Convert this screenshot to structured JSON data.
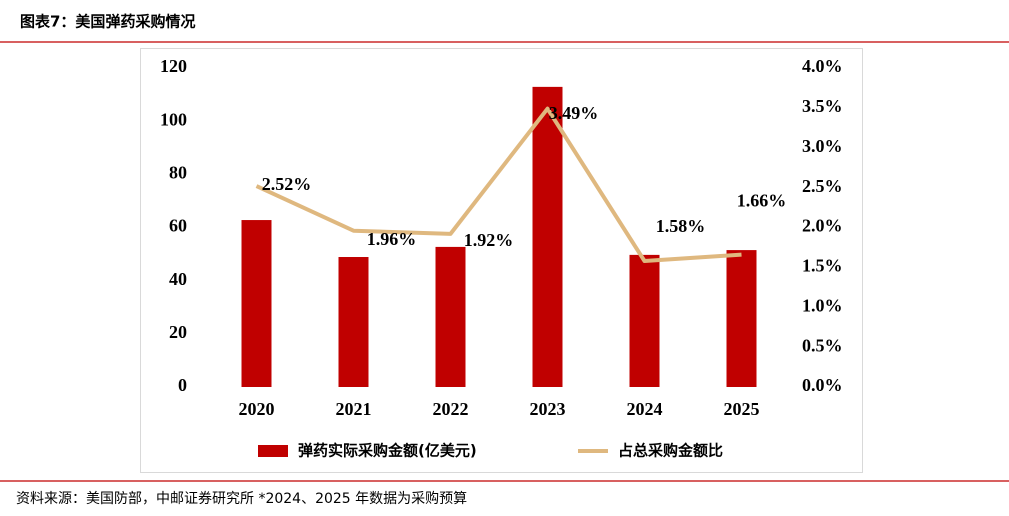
{
  "chart_data": {
    "type": "bar",
    "title": "图表7：美国弹药采购情况",
    "source": "资料来源：美国防部，中邮证券研究所 *2024、2025 年数据为采购预算",
    "categories": [
      "2020",
      "2021",
      "2022",
      "2023",
      "2024",
      "2025"
    ],
    "series": [
      {
        "name": "弹药实际采购金额(亿美元)",
        "type": "bar",
        "color": "#c00000",
        "values": [
          62.8,
          48.9,
          52.7,
          112.9,
          49.7,
          51.5
        ]
      },
      {
        "name": "占总采购金额比",
        "type": "line",
        "axis": "y2",
        "color": "#dfb87f",
        "values": [
          2.52,
          1.96,
          1.92,
          3.49,
          1.58,
          1.66
        ],
        "value_labels": [
          "2.52%",
          "1.96%",
          "1.92%",
          "3.49%",
          "1.58%",
          "1.66%"
        ]
      }
    ],
    "ylim": [
      0,
      120
    ],
    "yticks": [
      0,
      20,
      40,
      60,
      80,
      100,
      120
    ],
    "y2lim": [
      0,
      4
    ],
    "y2ticks": [
      {
        "value": 0,
        "label": "0.0%"
      },
      {
        "value": 0.5,
        "label": "0.5%"
      },
      {
        "value": 1,
        "label": "1.0%"
      },
      {
        "value": 1.5,
        "label": "1.5%"
      },
      {
        "value": 2,
        "label": "2.0%"
      },
      {
        "value": 2.5,
        "label": "2.5%"
      },
      {
        "value": 3,
        "label": "3.0%"
      },
      {
        "value": 3.5,
        "label": "3.5%"
      },
      {
        "value": 4,
        "label": "4.0%"
      }
    ],
    "grid": false,
    "legend": "bottom"
  }
}
